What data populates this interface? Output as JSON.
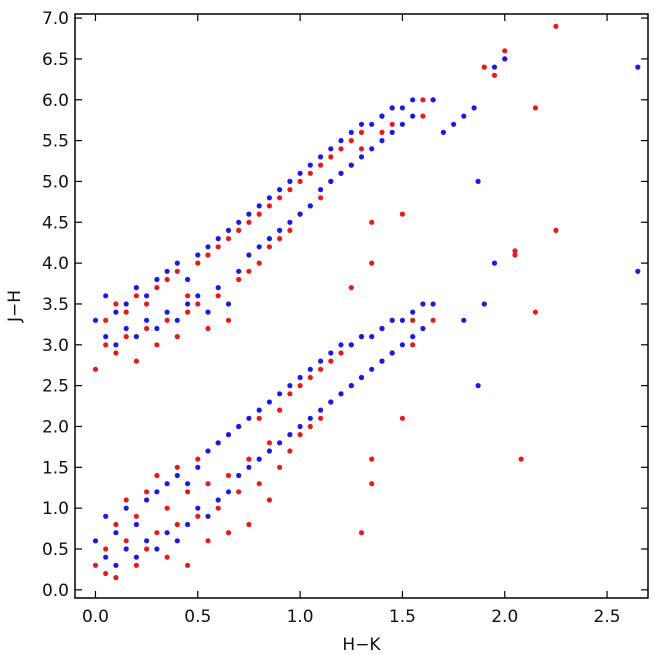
{
  "chart_data": {
    "type": "scatter",
    "title": "",
    "xlabel": "H−K",
    "ylabel": "J−H",
    "xlim": [
      -0.1,
      2.7
    ],
    "ylim": [
      -0.1,
      7.05
    ],
    "x_ticks": [
      "0.0",
      "0.5",
      "1.0",
      "1.5",
      "2.0",
      "2.5"
    ],
    "y_ticks": [
      "0.0",
      "0.5",
      "1.0",
      "1.5",
      "2.0",
      "2.5",
      "3.0",
      "3.5",
      "4.0",
      "4.5",
      "5.0",
      "5.5",
      "6.0",
      "6.5",
      "7.0"
    ],
    "grid": false,
    "legend": "none",
    "colors": {
      "red": "#e8191c",
      "blue": "#1a1ae6"
    },
    "series": [
      {
        "color": "#e8191c",
        "points": [
          [
            0.0,
            0.3
          ],
          [
            0.0,
            2.7
          ],
          [
            0.05,
            0.2
          ],
          [
            0.05,
            0.5
          ],
          [
            0.05,
            3.0
          ],
          [
            0.05,
            3.3
          ],
          [
            0.1,
            0.15
          ],
          [
            0.1,
            0.8
          ],
          [
            0.1,
            2.9
          ],
          [
            0.1,
            3.5
          ],
          [
            0.15,
            0.6
          ],
          [
            0.15,
            1.1
          ],
          [
            0.15,
            3.1
          ],
          [
            0.15,
            3.4
          ],
          [
            0.2,
            0.3
          ],
          [
            0.2,
            0.9
          ],
          [
            0.2,
            2.8
          ],
          [
            0.2,
            3.6
          ],
          [
            0.25,
            0.5
          ],
          [
            0.25,
            1.2
          ],
          [
            0.25,
            3.2
          ],
          [
            0.25,
            3.5
          ],
          [
            0.3,
            0.7
          ],
          [
            0.3,
            1.4
          ],
          [
            0.3,
            3.0
          ],
          [
            0.3,
            3.7
          ],
          [
            0.35,
            0.4
          ],
          [
            0.35,
            1.0
          ],
          [
            0.35,
            3.3
          ],
          [
            0.35,
            3.8
          ],
          [
            0.4,
            0.8
          ],
          [
            0.4,
            1.5
          ],
          [
            0.4,
            3.1
          ],
          [
            0.4,
            3.9
          ],
          [
            0.45,
            0.3
          ],
          [
            0.45,
            1.2
          ],
          [
            0.45,
            3.4
          ],
          [
            0.45,
            3.6
          ],
          [
            0.5,
            0.9
          ],
          [
            0.5,
            1.6
          ],
          [
            0.5,
            3.5
          ],
          [
            0.5,
            4.0
          ],
          [
            0.55,
            0.6
          ],
          [
            0.55,
            1.3
          ],
          [
            0.55,
            3.2
          ],
          [
            0.55,
            4.1
          ],
          [
            0.6,
            1.0
          ],
          [
            0.6,
            1.8
          ],
          [
            0.6,
            3.6
          ],
          [
            0.6,
            4.2
          ],
          [
            0.65,
            0.7
          ],
          [
            0.65,
            1.4
          ],
          [
            0.65,
            3.3
          ],
          [
            0.65,
            4.3
          ],
          [
            0.7,
            1.2
          ],
          [
            0.7,
            2.0
          ],
          [
            0.7,
            3.8
          ],
          [
            0.7,
            4.4
          ],
          [
            0.75,
            0.8
          ],
          [
            0.75,
            1.6
          ],
          [
            0.75,
            3.9
          ],
          [
            0.75,
            4.5
          ],
          [
            0.8,
            1.3
          ],
          [
            0.8,
            2.1
          ],
          [
            0.8,
            4.0
          ],
          [
            0.8,
            4.6
          ],
          [
            0.85,
            1.1
          ],
          [
            0.85,
            1.8
          ],
          [
            0.85,
            4.2
          ],
          [
            0.85,
            4.7
          ],
          [
            0.9,
            1.5
          ],
          [
            0.9,
            2.2
          ],
          [
            0.9,
            4.3
          ],
          [
            0.9,
            4.8
          ],
          [
            0.95,
            1.7
          ],
          [
            0.95,
            2.4
          ],
          [
            0.95,
            4.4
          ],
          [
            0.95,
            4.9
          ],
          [
            1.0,
            1.9
          ],
          [
            1.0,
            2.5
          ],
          [
            1.0,
            4.6
          ],
          [
            1.0,
            5.0
          ],
          [
            1.05,
            2.0
          ],
          [
            1.05,
            2.6
          ],
          [
            1.05,
            4.7
          ],
          [
            1.05,
            5.1
          ],
          [
            1.1,
            2.1
          ],
          [
            1.1,
            2.7
          ],
          [
            1.1,
            4.8
          ],
          [
            1.1,
            5.2
          ],
          [
            1.15,
            2.3
          ],
          [
            1.15,
            2.8
          ],
          [
            1.15,
            5.0
          ],
          [
            1.15,
            5.3
          ],
          [
            1.2,
            2.4
          ],
          [
            1.2,
            2.9
          ],
          [
            1.2,
            5.1
          ],
          [
            1.2,
            5.4
          ],
          [
            1.25,
            2.5
          ],
          [
            1.25,
            3.0
          ],
          [
            1.25,
            5.2
          ],
          [
            1.25,
            5.5
          ],
          [
            1.3,
            2.6
          ],
          [
            1.3,
            3.1
          ],
          [
            1.3,
            5.4
          ],
          [
            1.3,
            5.6
          ],
          [
            1.35,
            1.3
          ],
          [
            1.35,
            1.6
          ],
          [
            1.35,
            4.0
          ],
          [
            1.35,
            4.5
          ],
          [
            1.4,
            2.8
          ],
          [
            1.4,
            3.2
          ],
          [
            1.4,
            5.6
          ],
          [
            1.4,
            5.8
          ],
          [
            1.45,
            2.9
          ],
          [
            1.45,
            3.3
          ],
          [
            1.45,
            5.7
          ],
          [
            1.45,
            5.9
          ],
          [
            1.5,
            2.1
          ],
          [
            1.5,
            4.6
          ],
          [
            1.55,
            3.0
          ],
          [
            1.55,
            3.3
          ],
          [
            1.6,
            5.8
          ],
          [
            1.6,
            6.0
          ],
          [
            1.65,
            3.3
          ],
          [
            1.65,
            6.0
          ],
          [
            1.3,
            0.7
          ],
          [
            1.25,
            3.7
          ],
          [
            1.9,
            6.4
          ],
          [
            1.95,
            6.3
          ],
          [
            2.0,
            6.6
          ],
          [
            2.0,
            6.5
          ],
          [
            2.05,
            4.1
          ],
          [
            2.05,
            4.15
          ],
          [
            2.08,
            1.6
          ],
          [
            2.15,
            5.9
          ],
          [
            2.15,
            3.4
          ],
          [
            2.25,
            6.9
          ],
          [
            2.25,
            4.4
          ]
        ]
      },
      {
        "color": "#1a1ae6",
        "points": [
          [
            0.0,
            0.6
          ],
          [
            0.0,
            3.3
          ],
          [
            0.05,
            0.4
          ],
          [
            0.05,
            0.9
          ],
          [
            0.05,
            3.1
          ],
          [
            0.05,
            3.6
          ],
          [
            0.1,
            0.3
          ],
          [
            0.1,
            0.7
          ],
          [
            0.1,
            3.0
          ],
          [
            0.1,
            3.4
          ],
          [
            0.15,
            0.5
          ],
          [
            0.15,
            1.0
          ],
          [
            0.15,
            3.2
          ],
          [
            0.15,
            3.5
          ],
          [
            0.2,
            0.4
          ],
          [
            0.2,
            0.8
          ],
          [
            0.2,
            3.1
          ],
          [
            0.2,
            3.7
          ],
          [
            0.25,
            0.6
          ],
          [
            0.25,
            1.1
          ],
          [
            0.25,
            3.3
          ],
          [
            0.25,
            3.6
          ],
          [
            0.3,
            0.5
          ],
          [
            0.3,
            1.2
          ],
          [
            0.3,
            3.2
          ],
          [
            0.3,
            3.8
          ],
          [
            0.35,
            0.7
          ],
          [
            0.35,
            1.3
          ],
          [
            0.35,
            3.4
          ],
          [
            0.35,
            3.9
          ],
          [
            0.4,
            0.6
          ],
          [
            0.4,
            1.4
          ],
          [
            0.4,
            3.3
          ],
          [
            0.4,
            4.0
          ],
          [
            0.45,
            0.8
          ],
          [
            0.45,
            1.3
          ],
          [
            0.45,
            3.5
          ],
          [
            0.45,
            3.8
          ],
          [
            0.5,
            1.0
          ],
          [
            0.5,
            1.5
          ],
          [
            0.5,
            3.6
          ],
          [
            0.5,
            4.1
          ],
          [
            0.55,
            0.9
          ],
          [
            0.55,
            1.7
          ],
          [
            0.55,
            3.4
          ],
          [
            0.55,
            4.2
          ],
          [
            0.6,
            1.1
          ],
          [
            0.6,
            1.8
          ],
          [
            0.6,
            3.7
          ],
          [
            0.6,
            4.3
          ],
          [
            0.65,
            1.2
          ],
          [
            0.65,
            1.9
          ],
          [
            0.65,
            3.5
          ],
          [
            0.65,
            4.4
          ],
          [
            0.7,
            1.4
          ],
          [
            0.7,
            2.0
          ],
          [
            0.7,
            3.9
          ],
          [
            0.7,
            4.5
          ],
          [
            0.75,
            1.5
          ],
          [
            0.75,
            2.1
          ],
          [
            0.75,
            4.1
          ],
          [
            0.75,
            4.6
          ],
          [
            0.8,
            1.6
          ],
          [
            0.8,
            2.2
          ],
          [
            0.8,
            4.2
          ],
          [
            0.8,
            4.7
          ],
          [
            0.85,
            1.7
          ],
          [
            0.85,
            2.3
          ],
          [
            0.85,
            4.3
          ],
          [
            0.85,
            4.8
          ],
          [
            0.9,
            1.8
          ],
          [
            0.9,
            2.4
          ],
          [
            0.9,
            4.4
          ],
          [
            0.9,
            4.9
          ],
          [
            0.95,
            1.9
          ],
          [
            0.95,
            2.5
          ],
          [
            0.95,
            4.5
          ],
          [
            0.95,
            5.0
          ],
          [
            1.0,
            2.0
          ],
          [
            1.0,
            2.6
          ],
          [
            1.0,
            4.6
          ],
          [
            1.0,
            5.1
          ],
          [
            1.05,
            2.1
          ],
          [
            1.05,
            2.7
          ],
          [
            1.05,
            4.7
          ],
          [
            1.05,
            5.2
          ],
          [
            1.1,
            2.2
          ],
          [
            1.1,
            2.8
          ],
          [
            1.1,
            4.9
          ],
          [
            1.1,
            5.3
          ],
          [
            1.15,
            2.3
          ],
          [
            1.15,
            2.9
          ],
          [
            1.15,
            5.0
          ],
          [
            1.15,
            5.4
          ],
          [
            1.2,
            2.4
          ],
          [
            1.2,
            3.0
          ],
          [
            1.2,
            5.1
          ],
          [
            1.2,
            5.5
          ],
          [
            1.25,
            2.5
          ],
          [
            1.25,
            3.0
          ],
          [
            1.25,
            5.2
          ],
          [
            1.25,
            5.6
          ],
          [
            1.3,
            2.6
          ],
          [
            1.3,
            3.1
          ],
          [
            1.3,
            5.3
          ],
          [
            1.3,
            5.7
          ],
          [
            1.35,
            2.7
          ],
          [
            1.35,
            3.1
          ],
          [
            1.35,
            5.4
          ],
          [
            1.35,
            5.7
          ],
          [
            1.4,
            2.8
          ],
          [
            1.4,
            3.2
          ],
          [
            1.4,
            5.5
          ],
          [
            1.4,
            5.8
          ],
          [
            1.45,
            2.9
          ],
          [
            1.45,
            3.3
          ],
          [
            1.45,
            5.6
          ],
          [
            1.45,
            5.9
          ],
          [
            1.5,
            3.0
          ],
          [
            1.5,
            3.3
          ],
          [
            1.5,
            5.7
          ],
          [
            1.5,
            5.9
          ],
          [
            1.55,
            3.1
          ],
          [
            1.55,
            3.4
          ],
          [
            1.55,
            5.8
          ],
          [
            1.55,
            6.0
          ],
          [
            1.6,
            3.2
          ],
          [
            1.6,
            3.5
          ],
          [
            1.65,
            3.5
          ],
          [
            1.65,
            6.0
          ],
          [
            1.7,
            5.6
          ],
          [
            1.75,
            5.7
          ],
          [
            1.8,
            3.3
          ],
          [
            1.8,
            5.8
          ],
          [
            1.85,
            5.9
          ],
          [
            1.87,
            5.0
          ],
          [
            1.87,
            2.5
          ],
          [
            1.9,
            3.5
          ],
          [
            1.95,
            4.0
          ],
          [
            1.95,
            6.4
          ],
          [
            2.0,
            6.5
          ],
          [
            2.65,
            6.4
          ],
          [
            2.65,
            3.9
          ]
        ]
      }
    ]
  }
}
